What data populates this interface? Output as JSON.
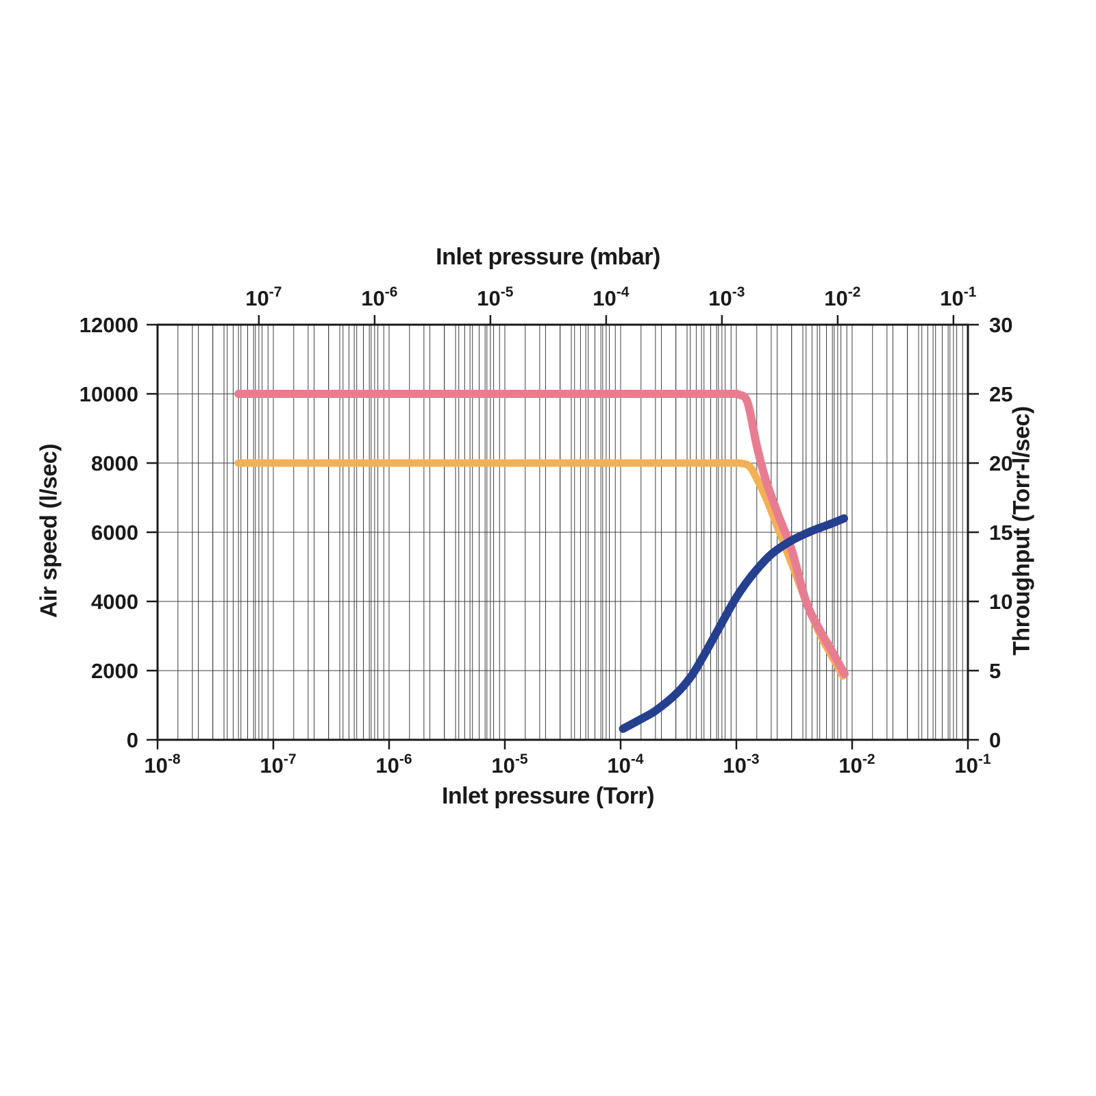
{
  "chart_data": {
    "type": "line",
    "title": "",
    "grid": {
      "show": true,
      "line_color": "#3f3f3f",
      "border_color": "#1a1a1a",
      "doubled_log_grid": true
    },
    "axes": {
      "x_bottom": {
        "label": "Inlet pressure (Torr)",
        "scale": "log",
        "min": 1e-08,
        "max": 0.1,
        "tick_exponents": [
          -8,
          -7,
          -6,
          -5,
          -4,
          -3,
          -2,
          -1
        ],
        "tick_labels": [
          "10⁻⁸",
          "10⁻⁷",
          "10⁻⁶",
          "10⁻⁵",
          "10⁻⁴",
          "10⁻³",
          "10⁻²",
          "10⁻¹"
        ]
      },
      "x_top": {
        "label": "Inlet pressure (mbar)",
        "scale": "log",
        "mbar_per_torr": 1.3332,
        "tick_exponents": [
          -7,
          -6,
          -5,
          -4,
          -3,
          -2,
          -1
        ],
        "tick_labels": [
          "10⁻⁷",
          "10⁻⁶",
          "10⁻⁵",
          "10⁻⁴",
          "10⁻³",
          "10⁻²",
          "10⁻¹"
        ]
      },
      "y_left": {
        "label": "Air speed (l/sec)",
        "min": 0,
        "max": 12000,
        "ticks": [
          0,
          2000,
          4000,
          6000,
          8000,
          10000,
          12000
        ],
        "tick_labels": [
          "0",
          "2000",
          "4000",
          "6000",
          "8000",
          "10000",
          "12000"
        ]
      },
      "y_right": {
        "label": "Throughput (Torr-l/sec)",
        "min": 0,
        "max": 30,
        "ticks": [
          0,
          5,
          10,
          15,
          20,
          25,
          30
        ],
        "tick_labels": [
          "0",
          "5",
          "10",
          "15",
          "20",
          "25",
          "30"
        ]
      }
    },
    "series": [
      {
        "name": "air-speed-8000",
        "color": "#f3b056",
        "axis": "left",
        "stroke_width": 11,
        "points": [
          [
            5e-08,
            8000
          ],
          [
            1e-07,
            8000
          ],
          [
            1e-06,
            8000
          ],
          [
            1e-05,
            8000
          ],
          [
            0.0001,
            8000
          ],
          [
            0.0008,
            8000
          ],
          [
            0.0011,
            7990
          ],
          [
            0.0013,
            7900
          ],
          [
            0.0015,
            7550
          ],
          [
            0.0018,
            7000
          ],
          [
            0.0023,
            6100
          ],
          [
            0.003,
            5100
          ],
          [
            0.004,
            4000
          ],
          [
            0.0052,
            3100
          ],
          [
            0.0066,
            2450
          ],
          [
            0.0083,
            1850
          ]
        ]
      },
      {
        "name": "air-speed-10000",
        "color": "#e87d92",
        "axis": "left",
        "stroke_width": 12,
        "points": [
          [
            5e-08,
            10000
          ],
          [
            1e-07,
            10000
          ],
          [
            1e-06,
            10000
          ],
          [
            1e-05,
            10000
          ],
          [
            0.0001,
            10000
          ],
          [
            0.0005,
            10000
          ],
          [
            0.0009,
            10000
          ],
          [
            0.00105,
            9980
          ],
          [
            0.00125,
            9750
          ],
          [
            0.0015,
            8500
          ],
          [
            0.0018,
            7500
          ],
          [
            0.0023,
            6500
          ],
          [
            0.003,
            5500
          ],
          [
            0.004,
            4000
          ],
          [
            0.0052,
            3200
          ],
          [
            0.0066,
            2600
          ],
          [
            0.0086,
            1900
          ]
        ]
      },
      {
        "name": "throughput",
        "color": "#24408e",
        "axis": "right",
        "stroke_width": 12,
        "points": [
          [
            0.000105,
            0.8
          ],
          [
            0.00015,
            1.5
          ],
          [
            0.0002,
            2.1
          ],
          [
            0.0003,
            3.3
          ],
          [
            0.0004,
            4.5
          ],
          [
            0.0005,
            5.8
          ],
          [
            0.0007,
            8.0
          ],
          [
            0.001,
            10.3
          ],
          [
            0.0014,
            12.0
          ],
          [
            0.002,
            13.4
          ],
          [
            0.003,
            14.4
          ],
          [
            0.0045,
            15.1
          ],
          [
            0.0065,
            15.6
          ],
          [
            0.0085,
            16.0
          ]
        ]
      }
    ]
  }
}
